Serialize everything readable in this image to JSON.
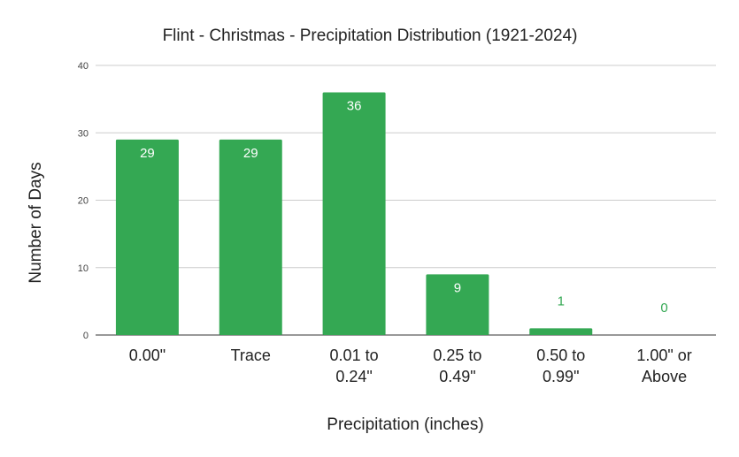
{
  "chart_data": {
    "type": "bar",
    "title": "Flint - Christmas - Precipitation Distribution (1921-2024)",
    "xlabel": "Precipitation (inches)",
    "ylabel": "Number of Days",
    "categories": [
      [
        "0.00\""
      ],
      [
        "Trace"
      ],
      [
        "0.01 to",
        "0.24\""
      ],
      [
        "0.25 to",
        "0.49\""
      ],
      [
        "0.50 to",
        "0.99\""
      ],
      [
        "1.00\" or",
        "Above"
      ]
    ],
    "values": [
      29,
      29,
      36,
      9,
      1,
      0
    ],
    "ylim": [
      0,
      40
    ],
    "yticks": [
      0,
      10,
      20,
      30,
      40
    ],
    "grid": true,
    "legend": "none",
    "bar_color": "#34a853"
  }
}
